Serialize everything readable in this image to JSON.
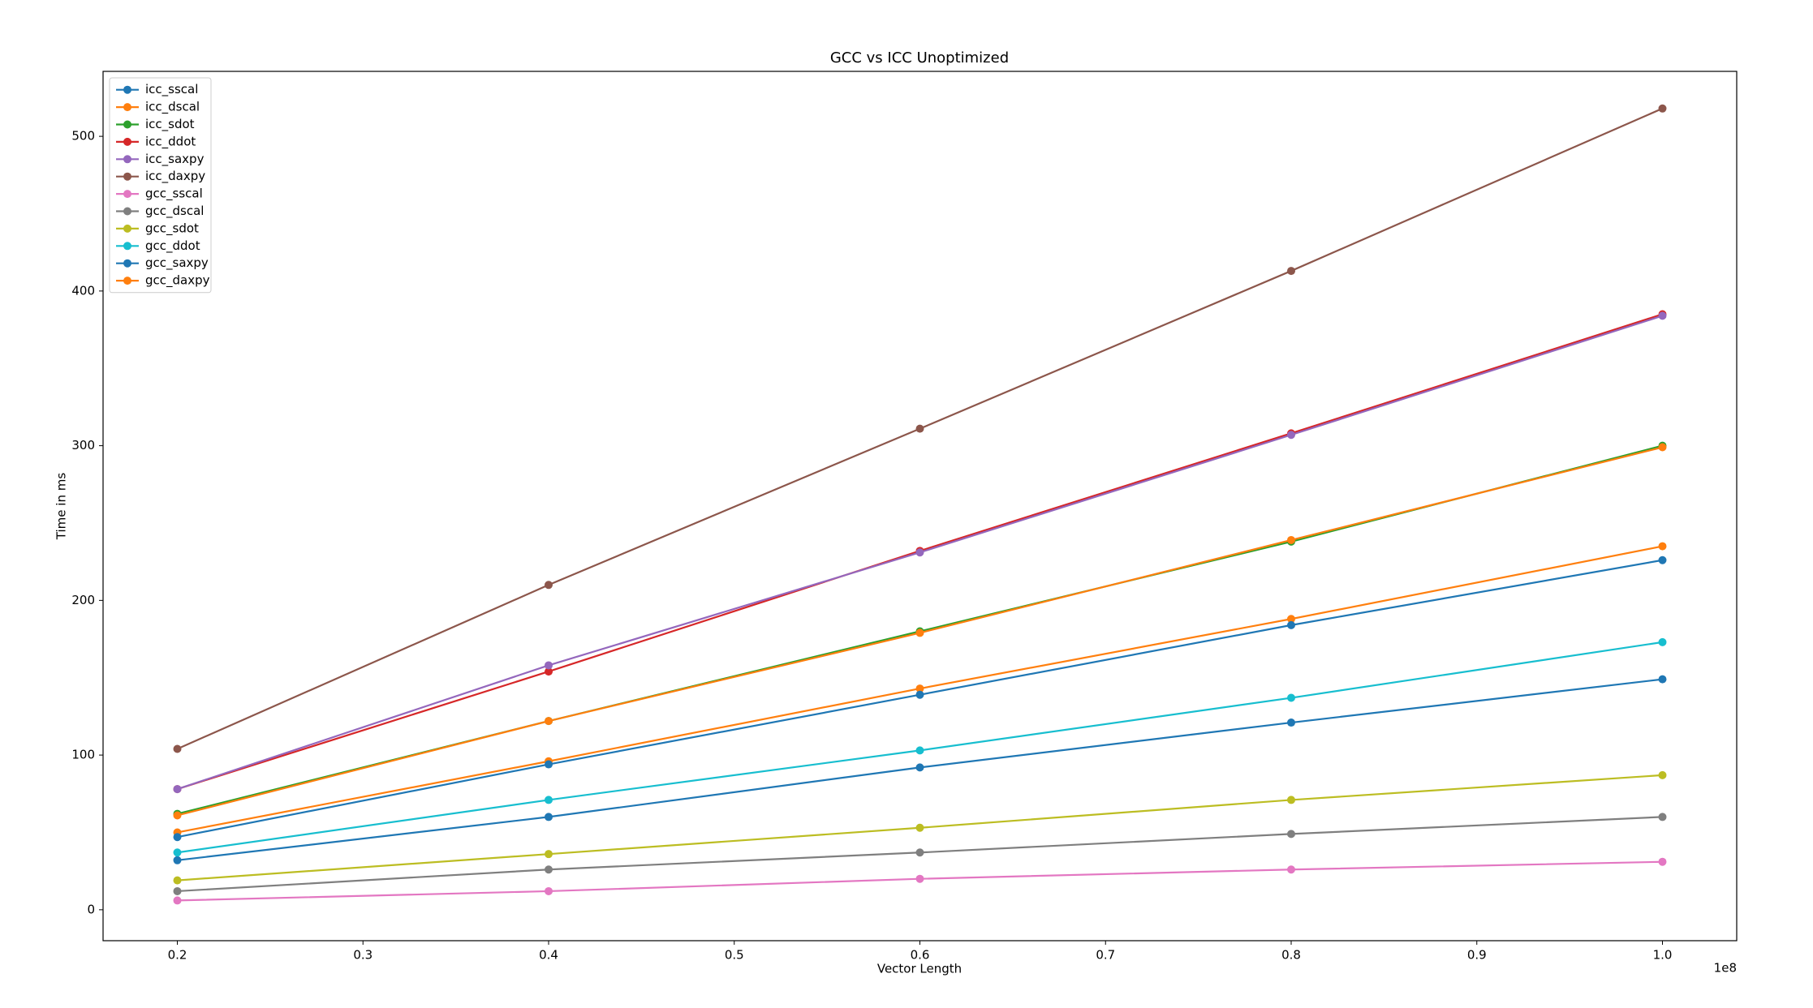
{
  "chart_data": {
    "type": "line",
    "title": "GCC vs ICC Unoptimized",
    "x_label": "Vector Length",
    "y_label": "Time in ms",
    "x_offset_label": "1e8",
    "x": [
      0.2,
      0.4,
      0.6,
      0.8,
      1.0
    ],
    "xlim": [
      0.16,
      1.04
    ],
    "xticks": [
      0.2,
      0.3,
      0.4,
      0.5,
      0.6,
      0.7,
      0.8,
      0.9,
      {
        "value": 1.0,
        "label": "1.0"
      }
    ],
    "ylim": [
      -20,
      542
    ],
    "yticks": [
      0,
      100,
      200,
      300,
      400,
      500
    ],
    "grid": false,
    "legend": "upper left",
    "series": [
      {
        "name": "icc_sscal",
        "color": "#1f77b4",
        "values": [
          32,
          60,
          92,
          121,
          149
        ]
      },
      {
        "name": "icc_dscal",
        "color": "#ff7f0e",
        "values": [
          50,
          96,
          143,
          188,
          235
        ]
      },
      {
        "name": "icc_sdot",
        "color": "#2ca02c",
        "values": [
          62,
          122,
          180,
          238,
          300
        ]
      },
      {
        "name": "icc_ddot",
        "color": "#d62728",
        "values": [
          78,
          154,
          232,
          308,
          385
        ]
      },
      {
        "name": "icc_saxpy",
        "color": "#9467bd",
        "values": [
          78,
          158,
          231,
          307,
          384
        ]
      },
      {
        "name": "icc_daxpy",
        "color": "#8c564b",
        "values": [
          104,
          210,
          311,
          413,
          518
        ]
      },
      {
        "name": "gcc_sscal",
        "color": "#e377c2",
        "values": [
          6,
          12,
          20,
          26,
          31
        ]
      },
      {
        "name": "gcc_dscal",
        "color": "#7f7f7f",
        "values": [
          12,
          26,
          37,
          49,
          60
        ]
      },
      {
        "name": "gcc_sdot",
        "color": "#bcbd22",
        "values": [
          19,
          36,
          53,
          71,
          87
        ]
      },
      {
        "name": "gcc_ddot",
        "color": "#17becf",
        "values": [
          37,
          71,
          103,
          137,
          173
        ]
      },
      {
        "name": "gcc_saxpy",
        "color": "#1f77b4",
        "values": [
          47,
          94,
          139,
          184,
          226
        ]
      },
      {
        "name": "gcc_daxpy",
        "color": "#ff7f0e",
        "values": [
          61,
          122,
          179,
          239,
          299
        ]
      }
    ]
  }
}
